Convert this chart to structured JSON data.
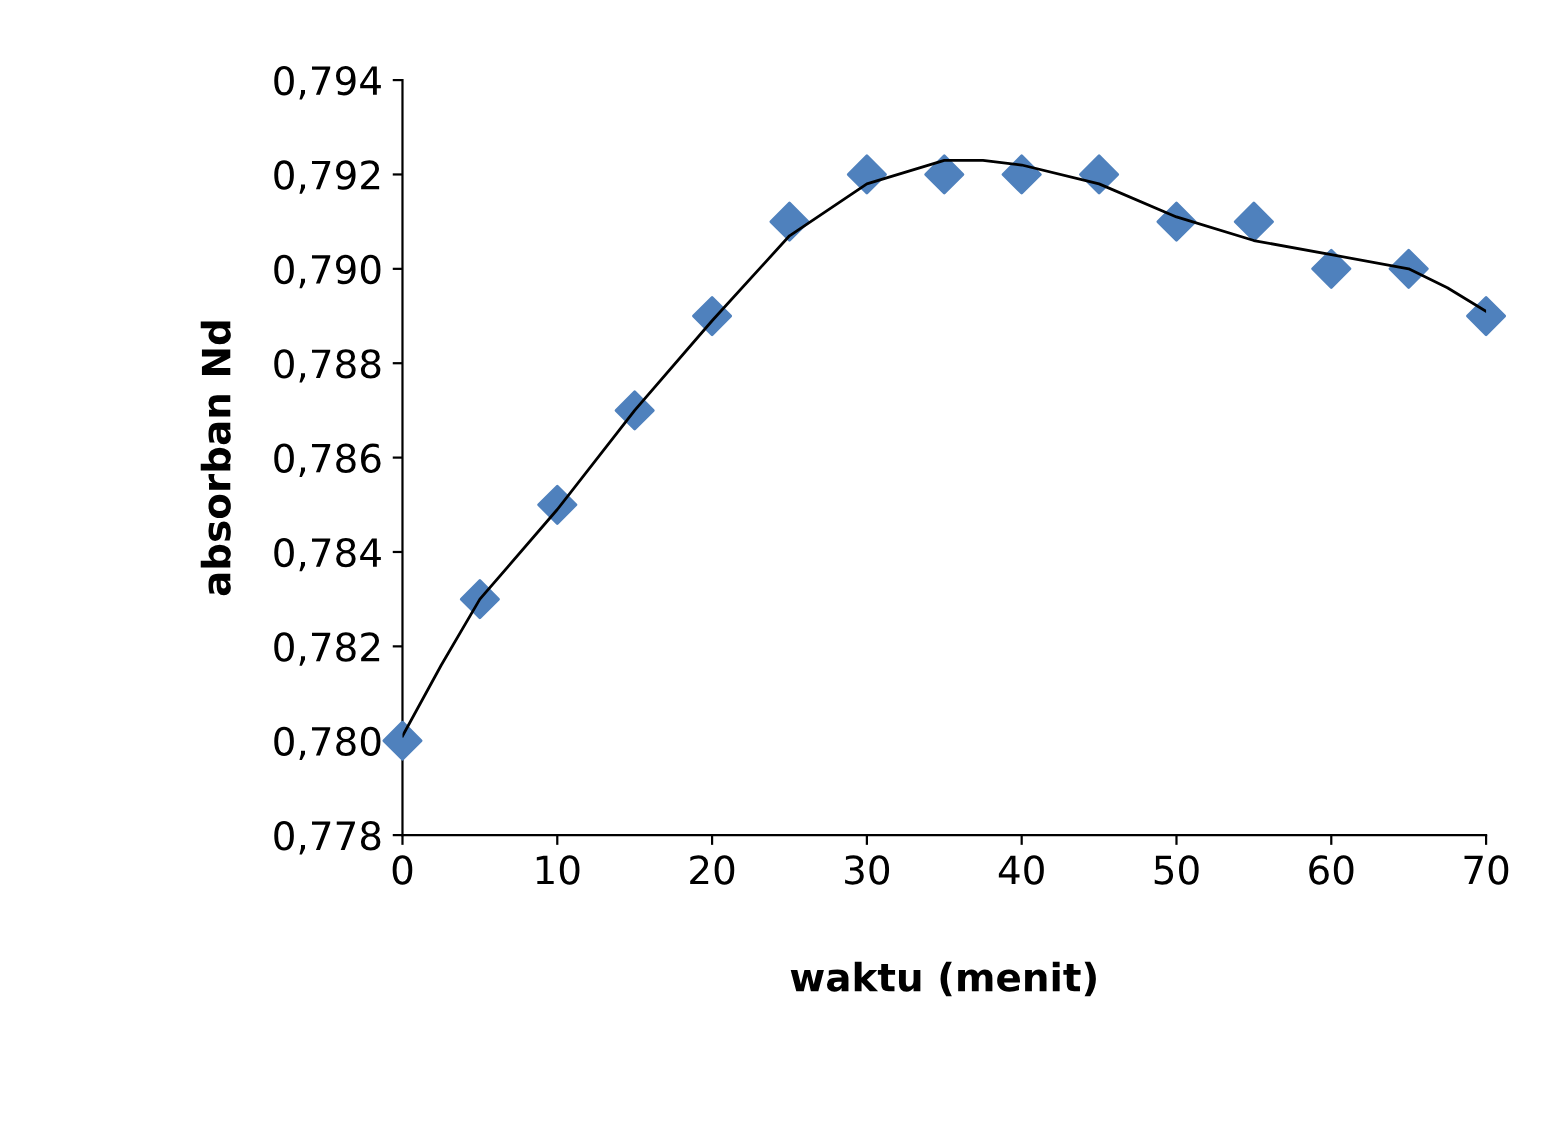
{
  "chart_data": {
    "type": "scatter",
    "xlabel": "waktu (menit)",
    "ylabel": "absorban Nd",
    "x": [
      0,
      5,
      10,
      15,
      20,
      25,
      30,
      35,
      40,
      45,
      50,
      55,
      60,
      65,
      70
    ],
    "series": [
      {
        "color": "#4f81bd",
        "marker": "diamond",
        "values": [
          0.78,
          0.783,
          0.785,
          0.787,
          0.789,
          0.791,
          0.792,
          0.792,
          0.792,
          0.792,
          0.791,
          0.791,
          0.79,
          0.79,
          0.789
        ]
      },
      {
        "type": "line",
        "color": "#000000",
        "marker": "none",
        "line_style": "solid",
        "x": [
          0,
          2.5,
          5,
          10,
          15,
          20,
          25,
          30,
          35,
          37.5,
          40,
          45,
          50,
          55,
          60,
          65,
          67.5,
          70
        ],
        "values": [
          0.7801,
          0.7816,
          0.783,
          0.7849,
          0.787,
          0.7889,
          0.7907,
          0.7918,
          0.7923,
          0.7923,
          0.7922,
          0.7918,
          0.7911,
          0.7906,
          0.7903,
          0.79,
          0.7896,
          0.7891
        ]
      }
    ],
    "xlim": [
      0,
      70
    ],
    "xticks": [
      0,
      10,
      20,
      30,
      40,
      50,
      60,
      70
    ],
    "ylim": [
      0.778,
      0.794
    ],
    "yticks": [
      {
        "value": 0.778,
        "label": "0,778"
      },
      {
        "value": 0.78,
        "label": "0,780"
      },
      {
        "value": 0.782,
        "label": "0,782"
      },
      {
        "value": 0.784,
        "label": "0,784"
      },
      {
        "value": 0.786,
        "label": "0,786"
      },
      {
        "value": 0.788,
        "label": "0,788"
      },
      {
        "value": 0.79,
        "label": "0,790"
      },
      {
        "value": 0.792,
        "label": "0,792"
      },
      {
        "value": 0.794,
        "label": "0,794"
      }
    ],
    "grid": false,
    "legend": false
  }
}
